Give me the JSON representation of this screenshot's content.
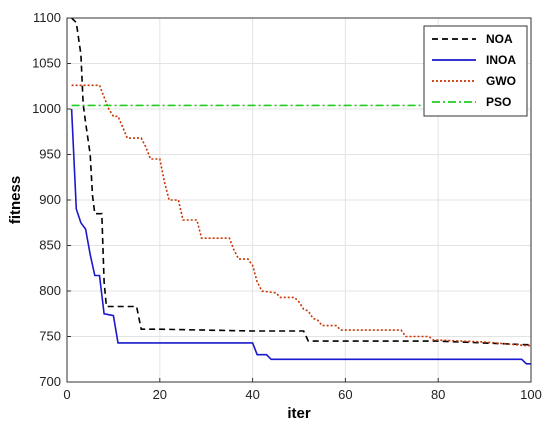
{
  "chart_data": {
    "type": "line",
    "xlabel": "iter",
    "ylabel": "fitness",
    "xlim": [
      0,
      100
    ],
    "ylim": [
      700,
      1100
    ],
    "xticks": [
      0,
      20,
      40,
      60,
      80,
      100
    ],
    "yticks": [
      700,
      750,
      800,
      850,
      900,
      950,
      1000,
      1050,
      1100
    ],
    "grid": true,
    "legend_position": "top-right",
    "series": [
      {
        "name": "NOA",
        "color": "#000000",
        "dash": "dashed",
        "points": [
          [
            1,
            1100
          ],
          [
            2,
            1095
          ],
          [
            3,
            1060
          ],
          [
            3.5,
            1005
          ],
          [
            4,
            985
          ],
          [
            5,
            950
          ],
          [
            5.5,
            905
          ],
          [
            6,
            885
          ],
          [
            7,
            885
          ],
          [
            7.5,
            885
          ],
          [
            8,
            810
          ],
          [
            8.5,
            783
          ],
          [
            10,
            783
          ],
          [
            15,
            783
          ],
          [
            16,
            758
          ],
          [
            20,
            758
          ],
          [
            40,
            756
          ],
          [
            51,
            756
          ],
          [
            52,
            745
          ],
          [
            60,
            745
          ],
          [
            80,
            745
          ],
          [
            99,
            741
          ],
          [
            100,
            741
          ]
        ]
      },
      {
        "name": "INOA",
        "color": "#1a1acc",
        "dash": "solid",
        "points": [
          [
            1,
            1000
          ],
          [
            2,
            890
          ],
          [
            3,
            875
          ],
          [
            4,
            868
          ],
          [
            5,
            840
          ],
          [
            6,
            817
          ],
          [
            7,
            817
          ],
          [
            8,
            775
          ],
          [
            9,
            774
          ],
          [
            10,
            773
          ],
          [
            11,
            743
          ],
          [
            20,
            743
          ],
          [
            40,
            743
          ],
          [
            41,
            730
          ],
          [
            43,
            730
          ],
          [
            44,
            725
          ],
          [
            60,
            725
          ],
          [
            80,
            725
          ],
          [
            98,
            725
          ],
          [
            99,
            720
          ],
          [
            100,
            720
          ]
        ]
      },
      {
        "name": "GWO",
        "color": "#cc3300",
        "dash": "dotted",
        "points": [
          [
            1,
            1026
          ],
          [
            7,
            1026
          ],
          [
            8,
            1013
          ],
          [
            9,
            1000
          ],
          [
            10,
            992
          ],
          [
            11,
            992
          ],
          [
            12,
            980
          ],
          [
            13,
            968
          ],
          [
            16,
            968
          ],
          [
            17,
            958
          ],
          [
            18,
            945
          ],
          [
            20,
            945
          ],
          [
            21,
            920
          ],
          [
            22,
            900
          ],
          [
            24,
            900
          ],
          [
            25,
            878
          ],
          [
            28,
            878
          ],
          [
            29,
            858
          ],
          [
            30,
            858
          ],
          [
            35,
            858
          ],
          [
            36,
            845
          ],
          [
            37,
            835
          ],
          [
            39,
            835
          ],
          [
            40,
            828
          ],
          [
            41,
            810
          ],
          [
            42,
            800
          ],
          [
            45,
            798
          ],
          [
            46,
            793
          ],
          [
            49,
            793
          ],
          [
            50,
            788
          ],
          [
            51,
            780
          ],
          [
            52,
            778
          ],
          [
            53,
            770
          ],
          [
            54,
            768
          ],
          [
            55,
            762
          ],
          [
            58,
            762
          ],
          [
            59,
            757
          ],
          [
            72,
            757
          ],
          [
            73,
            750
          ],
          [
            78,
            750
          ],
          [
            79,
            746
          ],
          [
            80,
            746
          ],
          [
            90,
            744
          ],
          [
            99,
            740
          ],
          [
            100,
            740
          ]
        ]
      },
      {
        "name": "PSO",
        "color": "#22cc22",
        "dash": "dashdot",
        "points": [
          [
            1,
            1004
          ],
          [
            100,
            1004
          ]
        ]
      }
    ]
  }
}
